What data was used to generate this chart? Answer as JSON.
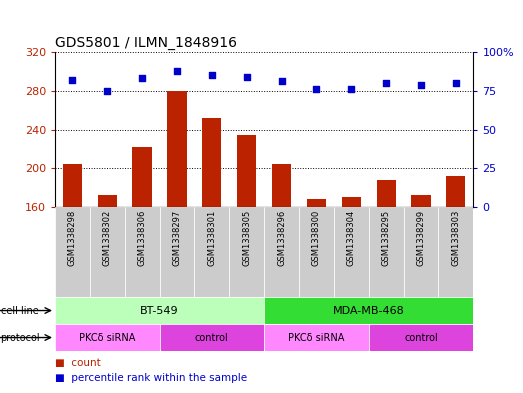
{
  "title": "GDS5801 / ILMN_1848916",
  "samples": [
    "GSM1338298",
    "GSM1338302",
    "GSM1338306",
    "GSM1338297",
    "GSM1338301",
    "GSM1338305",
    "GSM1338296",
    "GSM1338300",
    "GSM1338304",
    "GSM1338295",
    "GSM1338299",
    "GSM1338303"
  ],
  "counts": [
    204,
    172,
    222,
    280,
    252,
    234,
    204,
    168,
    170,
    188,
    172,
    192
  ],
  "percentiles": [
    82,
    75,
    83,
    88,
    85,
    84,
    81,
    76,
    76,
    80,
    79,
    80
  ],
  "ylim_left": [
    160,
    320
  ],
  "ylim_right": [
    0,
    100
  ],
  "yticks_left": [
    160,
    200,
    240,
    280,
    320
  ],
  "yticks_right": [
    0,
    25,
    50,
    75,
    100
  ],
  "bar_color": "#bb2200",
  "dot_color": "#0000cc",
  "cell_line_groups": [
    {
      "label": "BT-549",
      "start": 0,
      "end": 5,
      "color": "#bbffbb"
    },
    {
      "label": "MDA-MB-468",
      "start": 6,
      "end": 11,
      "color": "#33dd33"
    }
  ],
  "protocol_groups": [
    {
      "label": "PKCδ siRNA",
      "start": 0,
      "end": 2,
      "color": "#ff88ff"
    },
    {
      "label": "control",
      "start": 3,
      "end": 5,
      "color": "#dd44dd"
    },
    {
      "label": "PKCδ siRNA",
      "start": 6,
      "end": 8,
      "color": "#ff88ff"
    },
    {
      "label": "control",
      "start": 9,
      "end": 11,
      "color": "#dd44dd"
    }
  ],
  "grid_color": "#000000",
  "bg_color": "#ffffff",
  "sample_bg_color": "#cccccc",
  "legend_count_color": "#bb2200",
  "legend_pct_color": "#0000cc",
  "left_label_color": "#bb2200",
  "right_label_color": "#0000cc"
}
